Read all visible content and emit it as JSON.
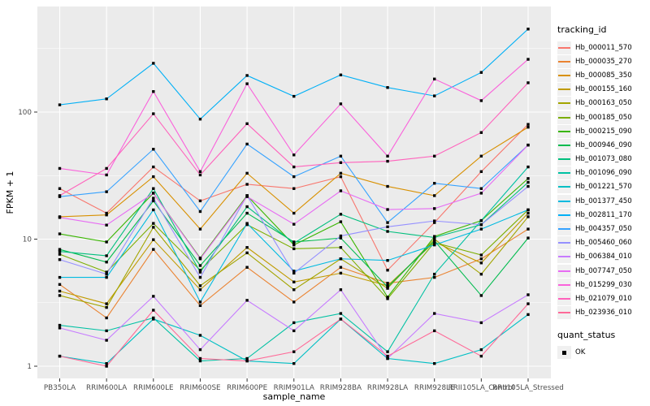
{
  "figure": {
    "background": "#FFFFFF",
    "panel_background": "#EBEBEB",
    "grid_color": "#FFFFFF",
    "axis_text_color": "#4D4D4D",
    "tick_mark_color": "#333333",
    "point_color": "#000000"
  },
  "chart_data": {
    "type": "line",
    "title": "",
    "xlabel": "sample_name",
    "ylabel": "FPKM + 1",
    "y_scale": "log10",
    "y_ticks": [
      1,
      10,
      100
    ],
    "y_minor_ticks": [
      3.162,
      31.62,
      316.2
    ],
    "ylim": [
      0.93,
      680
    ],
    "grid": "on",
    "legend_position": "right",
    "legend": {
      "color_title": "tracking_id",
      "shape_title": "quant_status",
      "shape_value": "OK",
      "point_shape": "square"
    },
    "x_categories": [
      "PB350LA",
      "RRIM600LA",
      "RRIM600LE",
      "RRIM600SE",
      "RRIM600PE",
      "RRIM901LA",
      "RRIM928BA",
      "RRIM928LA",
      "RRIM928LE",
      "RRII105LA_Control",
      "RRII105LA_Stressed"
    ],
    "series": [
      {
        "name": "Hb_000011_570",
        "color": "#F8766D",
        "values": [
          25,
          16,
          37,
          20,
          27,
          25,
          31,
          5.7,
          13.5,
          34,
          80
        ]
      },
      {
        "name": "Hb_000035_270",
        "color": "#EA8331",
        "values": [
          4.4,
          2.4,
          8.3,
          3.0,
          6.0,
          3.2,
          6.0,
          4.5,
          5.0,
          7.0,
          12
        ]
      },
      {
        "name": "Hb_000085_350",
        "color": "#D89000",
        "values": [
          15,
          15.5,
          31,
          12,
          33,
          16,
          33,
          26,
          22,
          45,
          76
        ]
      },
      {
        "name": "Hb_000155_160",
        "color": "#C09B00",
        "values": [
          3.9,
          3.1,
          9.9,
          4.0,
          8.6,
          4.6,
          5.4,
          4.3,
          9.5,
          6.5,
          16
        ]
      },
      {
        "name": "Hb_000163_050",
        "color": "#A3A500",
        "values": [
          3.6,
          2.9,
          12.4,
          4.3,
          7.8,
          4.0,
          7.0,
          4.1,
          10,
          5.3,
          15
        ]
      },
      {
        "name": "Hb_000185_050",
        "color": "#7CAE00",
        "values": [
          7.6,
          5.5,
          13.3,
          5.7,
          13,
          8.4,
          8.6,
          3.4,
          9.4,
          7.5,
          17
        ]
      },
      {
        "name": "Hb_000215_090",
        "color": "#39B600",
        "values": [
          11,
          9.5,
          23,
          7.1,
          22,
          9.0,
          13.7,
          3.5,
          10.5,
          14,
          30
        ]
      },
      {
        "name": "Hb_000946_090",
        "color": "#00BB4E",
        "values": [
          8.3,
          6.6,
          20,
          6.2,
          16,
          9.5,
          10.2,
          4.2,
          9.7,
          3.6,
          10.2
        ]
      },
      {
        "name": "Hb_001073_080",
        "color": "#00BF7D",
        "values": [
          8.0,
          7.4,
          25,
          5.5,
          18,
          9.3,
          15.7,
          11.5,
          10.3,
          13,
          28
        ]
      },
      {
        "name": "Hb_001096_090",
        "color": "#00C1A3",
        "values": [
          2.1,
          1.9,
          2.4,
          1.1,
          1.15,
          2.2,
          2.6,
          1.3,
          5.3,
          14,
          37
        ]
      },
      {
        "name": "Hb_001221_570",
        "color": "#00BFC4",
        "values": [
          1.2,
          1.05,
          2.35,
          1.75,
          1.1,
          1.05,
          2.35,
          1.15,
          1.05,
          1.35,
          2.55
        ]
      },
      {
        "name": "Hb_001377_450",
        "color": "#00BAE0",
        "values": [
          5.0,
          5.0,
          17,
          3.2,
          13.3,
          5.6,
          7.0,
          6.8,
          9.0,
          12,
          17
        ]
      },
      {
        "name": "Hb_002811_170",
        "color": "#00B0F6",
        "values": [
          114,
          127,
          242,
          88,
          194,
          133,
          196,
          156,
          134,
          205,
          450
        ]
      },
      {
        "name": "Hb_004357_050",
        "color": "#35A2FF",
        "values": [
          21.6,
          23.6,
          51,
          16.5,
          56,
          31,
          45,
          13.5,
          27.5,
          25,
          55
        ]
      },
      {
        "name": "Hb_005460_060",
        "color": "#9590FF",
        "values": [
          6.9,
          5.3,
          21,
          5.0,
          22,
          5.4,
          10.6,
          12.5,
          13.9,
          13,
          26
        ]
      },
      {
        "name": "Hb_006384_010",
        "color": "#C77CFF",
        "values": [
          2.0,
          1.6,
          3.55,
          1.35,
          3.3,
          1.9,
          4.0,
          1.15,
          2.6,
          2.2,
          3.65
        ]
      },
      {
        "name": "Hb_007747_050",
        "color": "#E76BF3",
        "values": [
          14.8,
          12.9,
          23,
          7.0,
          21.6,
          13.1,
          24,
          17.1,
          17.4,
          23,
          55
        ]
      },
      {
        "name": "Hb_015299_030",
        "color": "#FA62DB",
        "values": [
          36,
          32,
          145,
          34,
          167,
          46,
          116,
          45,
          182,
          123,
          260
        ]
      },
      {
        "name": "Hb_021079_010",
        "color": "#FF62BC",
        "values": [
          22,
          36,
          97,
          32,
          81,
          37,
          40,
          41,
          45,
          69,
          170
        ]
      },
      {
        "name": "Hb_023936_010",
        "color": "#FF6A98",
        "values": [
          1.2,
          1.0,
          2.76,
          1.15,
          1.1,
          1.3,
          2.35,
          1.2,
          1.9,
          1.2,
          3.1
        ]
      }
    ]
  }
}
